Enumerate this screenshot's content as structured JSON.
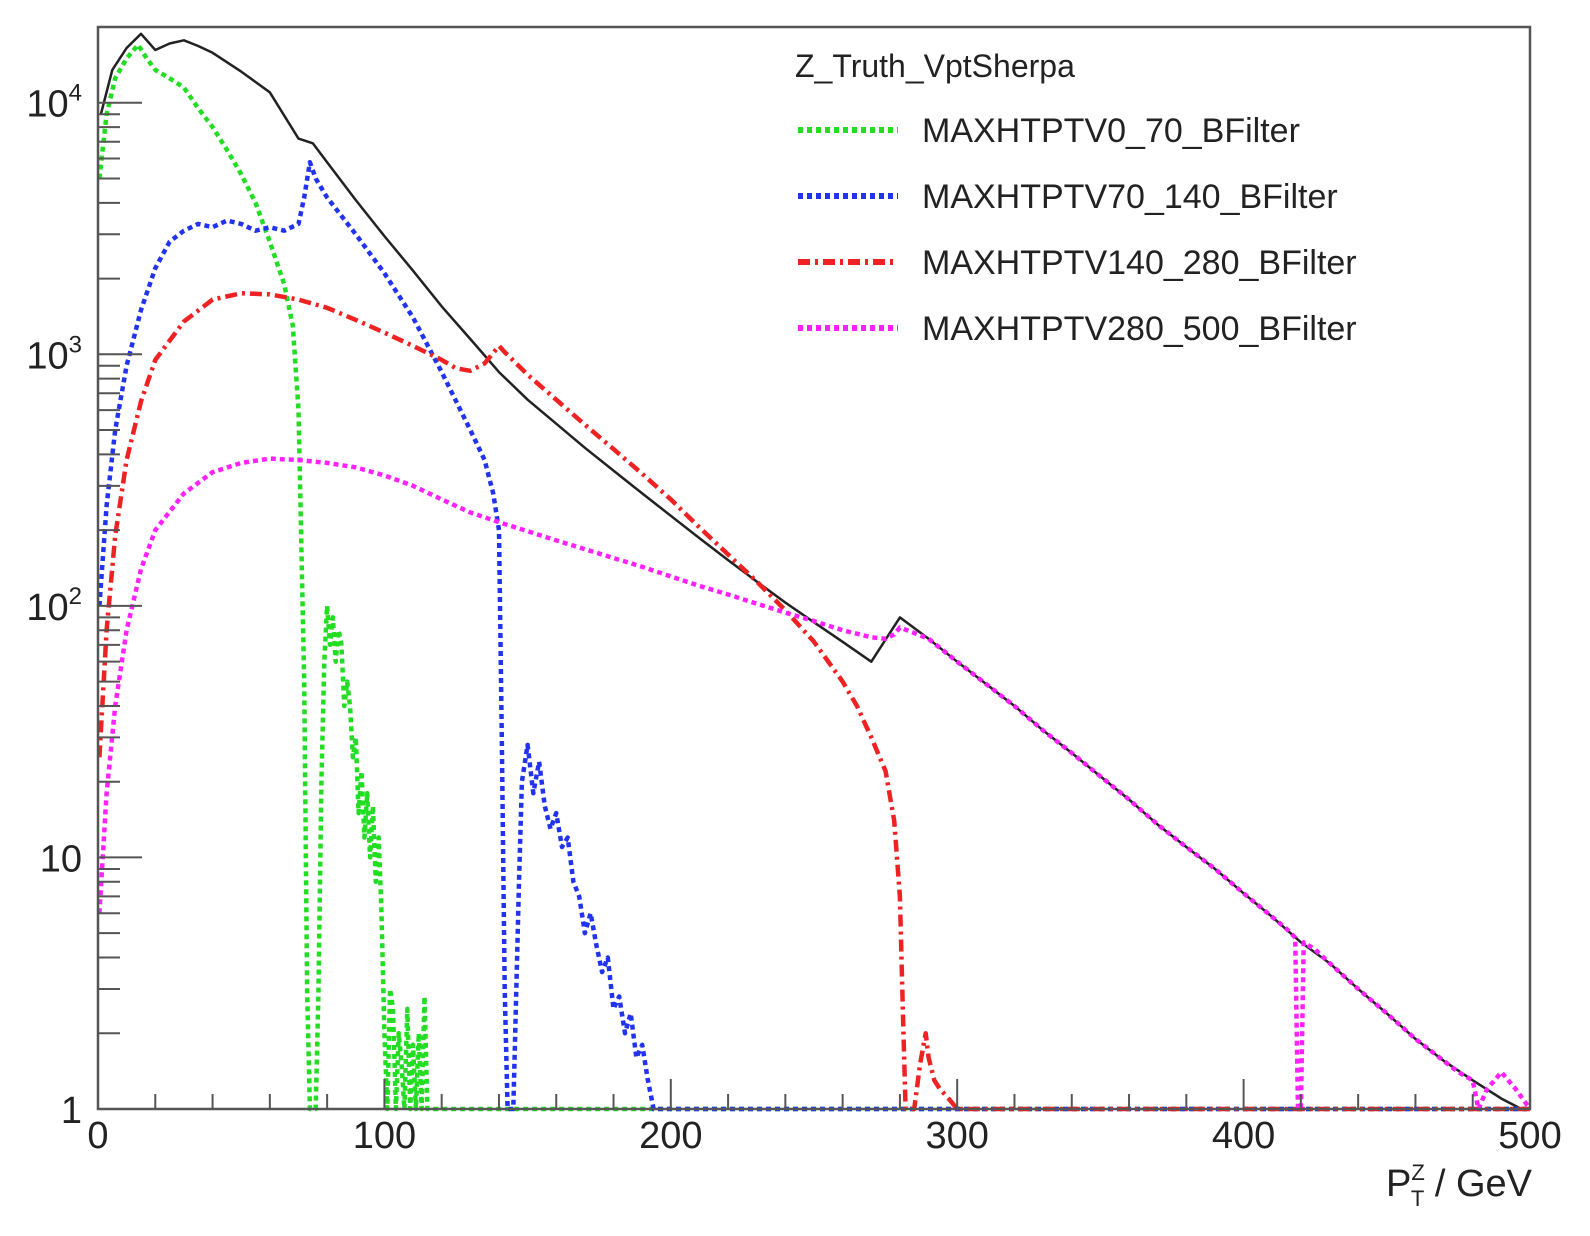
{
  "chart_data": {
    "type": "line",
    "title": "",
    "xlabel": "P_T^Z / GeV",
    "xlabel_main": "P",
    "xlabel_sup": "Z",
    "xlabel_sub": "T",
    "xlabel_tail": " / GeV",
    "ylabel": "",
    "xlim": [
      0,
      500
    ],
    "ylim": [
      1,
      20000
    ],
    "yscale": "log",
    "grid": false,
    "legend_placement": "top-right",
    "legend_header": "Z_Truth_VptSherpa",
    "x_ticks": [
      "0",
      "100",
      "200",
      "300",
      "400",
      "500"
    ],
    "y_ticks": [
      {
        "value": 1,
        "label": "1"
      },
      {
        "value": 10,
        "label": "10"
      },
      {
        "value": 100,
        "label": "10",
        "exp": "2"
      },
      {
        "value": 1000,
        "label": "10",
        "exp": "3"
      },
      {
        "value": 10000,
        "label": "10",
        "exp": "4"
      }
    ],
    "series": [
      {
        "name": "",
        "color": "#222222",
        "style": "solid",
        "in_legend": false,
        "points": [
          [
            1,
            9000
          ],
          [
            5,
            13500
          ],
          [
            10,
            16500
          ],
          [
            15,
            18800
          ],
          [
            20,
            16200
          ],
          [
            25,
            17200
          ],
          [
            30,
            17700
          ],
          [
            35,
            16800
          ],
          [
            40,
            15800
          ],
          [
            50,
            13300
          ],
          [
            60,
            11000
          ],
          [
            70,
            7200
          ],
          [
            75,
            6900
          ],
          [
            80,
            5800
          ],
          [
            90,
            4100
          ],
          [
            100,
            2950
          ],
          [
            110,
            2150
          ],
          [
            120,
            1550
          ],
          [
            130,
            1150
          ],
          [
            140,
            850
          ],
          [
            150,
            660
          ],
          [
            160,
            530
          ],
          [
            170,
            425
          ],
          [
            180,
            345
          ],
          [
            190,
            280
          ],
          [
            200,
            228
          ],
          [
            210,
            186
          ],
          [
            220,
            152
          ],
          [
            230,
            125
          ],
          [
            240,
            103
          ],
          [
            250,
            86
          ],
          [
            260,
            72
          ],
          [
            270,
            60
          ],
          [
            280,
            90
          ],
          [
            290,
            74
          ],
          [
            300,
            60
          ],
          [
            310,
            49
          ],
          [
            320,
            40
          ],
          [
            330,
            32
          ],
          [
            340,
            26
          ],
          [
            350,
            21
          ],
          [
            360,
            17
          ],
          [
            370,
            13.5
          ],
          [
            380,
            11
          ],
          [
            390,
            9
          ],
          [
            400,
            7.2
          ],
          [
            410,
            5.8
          ],
          [
            420,
            4.6
          ],
          [
            430,
            3.8
          ],
          [
            440,
            3.0
          ],
          [
            450,
            2.4
          ],
          [
            460,
            1.9
          ],
          [
            470,
            1.55
          ],
          [
            480,
            1.3
          ],
          [
            490,
            1.1
          ],
          [
            497,
            1.0
          ]
        ]
      },
      {
        "name": "MAXHTPTV0_70_BFilter",
        "color": "#22dd22",
        "style": "dotted",
        "in_legend": true,
        "points": [
          [
            0.5,
            5000
          ],
          [
            3,
            9000
          ],
          [
            6,
            12500
          ],
          [
            10,
            15000
          ],
          [
            14,
            17000
          ],
          [
            17,
            15000
          ],
          [
            20,
            13500
          ],
          [
            25,
            12500
          ],
          [
            30,
            11500
          ],
          [
            35,
            9500
          ],
          [
            40,
            8000
          ],
          [
            45,
            6500
          ],
          [
            50,
            5200
          ],
          [
            55,
            4000
          ],
          [
            60,
            2800
          ],
          [
            65,
            1900
          ],
          [
            68,
            1300
          ],
          [
            70,
            600
          ],
          [
            72,
            50
          ],
          [
            73,
            3
          ],
          [
            74,
            1
          ],
          [
            76,
            1
          ],
          [
            77,
            3
          ],
          [
            78,
            20
          ],
          [
            79,
            60
          ],
          [
            80,
            100
          ],
          [
            81,
            70
          ],
          [
            82,
            90
          ],
          [
            83,
            60
          ],
          [
            84,
            80
          ],
          [
            85,
            70
          ],
          [
            86,
            40
          ],
          [
            87,
            50
          ],
          [
            88,
            40
          ],
          [
            89,
            25
          ],
          [
            90,
            30
          ],
          [
            91,
            15
          ],
          [
            92,
            22
          ],
          [
            93,
            12
          ],
          [
            94,
            18
          ],
          [
            95,
            10
          ],
          [
            96,
            16
          ],
          [
            97,
            8
          ],
          [
            98,
            12
          ],
          [
            99,
            6
          ],
          [
            100,
            2
          ],
          [
            101,
            1
          ],
          [
            102,
            3
          ],
          [
            103,
            2.5
          ],
          [
            104,
            1
          ],
          [
            105,
            2
          ],
          [
            106,
            1.5
          ],
          [
            107,
            1
          ],
          [
            108,
            2.5
          ],
          [
            109,
            1
          ],
          [
            110,
            1.8
          ],
          [
            111,
            1
          ],
          [
            112,
            2
          ],
          [
            113,
            1
          ],
          [
            114,
            2.8
          ],
          [
            115,
            1
          ],
          [
            130,
            1
          ],
          [
            160,
            1
          ],
          [
            200,
            1
          ],
          [
            240,
            1
          ],
          [
            280,
            1
          ],
          [
            320,
            1
          ],
          [
            360,
            1
          ],
          [
            400,
            1
          ],
          [
            440,
            1
          ],
          [
            480,
            1
          ],
          [
            500,
            1
          ]
        ]
      },
      {
        "name": "MAXHTPTV70_140_BFilter",
        "color": "#2233ee",
        "style": "dotted",
        "in_legend": true,
        "points": [
          [
            0.5,
            100
          ],
          [
            3,
            250
          ],
          [
            6,
            500
          ],
          [
            10,
            900
          ],
          [
            15,
            1500
          ],
          [
            20,
            2200
          ],
          [
            25,
            2800
          ],
          [
            30,
            3100
          ],
          [
            35,
            3300
          ],
          [
            40,
            3200
          ],
          [
            45,
            3400
          ],
          [
            50,
            3300
          ],
          [
            55,
            3100
          ],
          [
            60,
            3200
          ],
          [
            65,
            3100
          ],
          [
            70,
            3300
          ],
          [
            72,
            4200
          ],
          [
            74,
            5800
          ],
          [
            76,
            5000
          ],
          [
            80,
            4200
          ],
          [
            90,
            3000
          ],
          [
            100,
            2100
          ],
          [
            110,
            1400
          ],
          [
            120,
            850
          ],
          [
            130,
            500
          ],
          [
            135,
            380
          ],
          [
            138,
            280
          ],
          [
            140,
            200
          ],
          [
            141,
            30
          ],
          [
            142,
            3
          ],
          [
            143,
            1
          ],
          [
            145,
            1
          ],
          [
            147,
            8
          ],
          [
            148,
            20
          ],
          [
            150,
            28
          ],
          [
            152,
            18
          ],
          [
            154,
            24
          ],
          [
            156,
            16
          ],
          [
            158,
            13
          ],
          [
            160,
            15
          ],
          [
            162,
            11
          ],
          [
            164,
            12
          ],
          [
            166,
            8
          ],
          [
            168,
            7
          ],
          [
            170,
            5
          ],
          [
            172,
            6
          ],
          [
            174,
            4.5
          ],
          [
            176,
            3.5
          ],
          [
            178,
            4
          ],
          [
            180,
            2.5
          ],
          [
            182,
            2.8
          ],
          [
            184,
            2
          ],
          [
            186,
            2.4
          ],
          [
            188,
            1.6
          ],
          [
            190,
            1.8
          ],
          [
            192,
            1.3
          ],
          [
            194,
            1
          ],
          [
            200,
            1
          ],
          [
            240,
            1
          ],
          [
            280,
            1
          ],
          [
            320,
            1
          ],
          [
            360,
            1
          ],
          [
            400,
            1
          ],
          [
            440,
            1
          ],
          [
            480,
            1
          ],
          [
            500,
            1
          ]
        ]
      },
      {
        "name": "MAXHTPTV140_280_BFilter",
        "color": "#ee2222",
        "style": "dashdot",
        "in_legend": true,
        "points": [
          [
            0.5,
            25
          ],
          [
            3,
            80
          ],
          [
            6,
            190
          ],
          [
            10,
            380
          ],
          [
            15,
            650
          ],
          [
            20,
            950
          ],
          [
            30,
            1350
          ],
          [
            40,
            1650
          ],
          [
            50,
            1750
          ],
          [
            60,
            1730
          ],
          [
            70,
            1650
          ],
          [
            80,
            1530
          ],
          [
            90,
            1370
          ],
          [
            100,
            1220
          ],
          [
            110,
            1080
          ],
          [
            120,
            950
          ],
          [
            125,
            880
          ],
          [
            130,
            860
          ],
          [
            135,
            920
          ],
          [
            140,
            1080
          ],
          [
            142,
            1020
          ],
          [
            150,
            830
          ],
          [
            160,
            660
          ],
          [
            170,
            525
          ],
          [
            180,
            420
          ],
          [
            190,
            335
          ],
          [
            200,
            265
          ],
          [
            210,
            205
          ],
          [
            220,
            160
          ],
          [
            230,
            125
          ],
          [
            240,
            96
          ],
          [
            250,
            72
          ],
          [
            260,
            50
          ],
          [
            265,
            40
          ],
          [
            270,
            30
          ],
          [
            275,
            22
          ],
          [
            278,
            14
          ],
          [
            280,
            7
          ],
          [
            281,
            2.5
          ],
          [
            282,
            1
          ],
          [
            285,
            1
          ],
          [
            287,
            1.5
          ],
          [
            289,
            2
          ],
          [
            290,
            1.6
          ],
          [
            292,
            1.3
          ],
          [
            294,
            1.2
          ],
          [
            297,
            1.1
          ],
          [
            300,
            1
          ],
          [
            340,
            1
          ],
          [
            380,
            1
          ],
          [
            420,
            1
          ],
          [
            460,
            1
          ],
          [
            500,
            1
          ]
        ]
      },
      {
        "name": "MAXHTPTV280_500_BFilter",
        "color": "#ff22ff",
        "style": "dotted",
        "in_legend": true,
        "points": [
          [
            0.5,
            6
          ],
          [
            3,
            18
          ],
          [
            6,
            40
          ],
          [
            10,
            80
          ],
          [
            15,
            140
          ],
          [
            20,
            200
          ],
          [
            30,
            280
          ],
          [
            40,
            340
          ],
          [
            50,
            370
          ],
          [
            60,
            385
          ],
          [
            70,
            380
          ],
          [
            80,
            370
          ],
          [
            90,
            355
          ],
          [
            100,
            330
          ],
          [
            110,
            300
          ],
          [
            120,
            265
          ],
          [
            130,
            235
          ],
          [
            140,
            215
          ],
          [
            150,
            198
          ],
          [
            160,
            182
          ],
          [
            170,
            168
          ],
          [
            180,
            155
          ],
          [
            190,
            143
          ],
          [
            200,
            131
          ],
          [
            210,
            120
          ],
          [
            220,
            111
          ],
          [
            230,
            102
          ],
          [
            240,
            94
          ],
          [
            250,
            87
          ],
          [
            260,
            80
          ],
          [
            270,
            75
          ],
          [
            275,
            74
          ],
          [
            278,
            77
          ],
          [
            280,
            82
          ],
          [
            285,
            78
          ],
          [
            290,
            74
          ],
          [
            300,
            60
          ],
          [
            310,
            49
          ],
          [
            320,
            40
          ],
          [
            330,
            32
          ],
          [
            340,
            26
          ],
          [
            350,
            21
          ],
          [
            360,
            17
          ],
          [
            370,
            13.5
          ],
          [
            380,
            11
          ],
          [
            390,
            9
          ],
          [
            400,
            7.2
          ],
          [
            410,
            5.8
          ],
          [
            415,
            5.2
          ],
          [
            418,
            4.8
          ],
          [
            419,
            1
          ],
          [
            420,
            1
          ],
          [
            421,
            4.6
          ],
          [
            425,
            4.3
          ],
          [
            430,
            3.8
          ],
          [
            440,
            3.0
          ],
          [
            450,
            2.4
          ],
          [
            460,
            1.9
          ],
          [
            470,
            1.55
          ],
          [
            475,
            1.4
          ],
          [
            480,
            1.3
          ],
          [
            482,
            1
          ],
          [
            485,
            1.2
          ],
          [
            490,
            1.4
          ],
          [
            495,
            1.2
          ],
          [
            500,
            1
          ]
        ]
      }
    ]
  }
}
